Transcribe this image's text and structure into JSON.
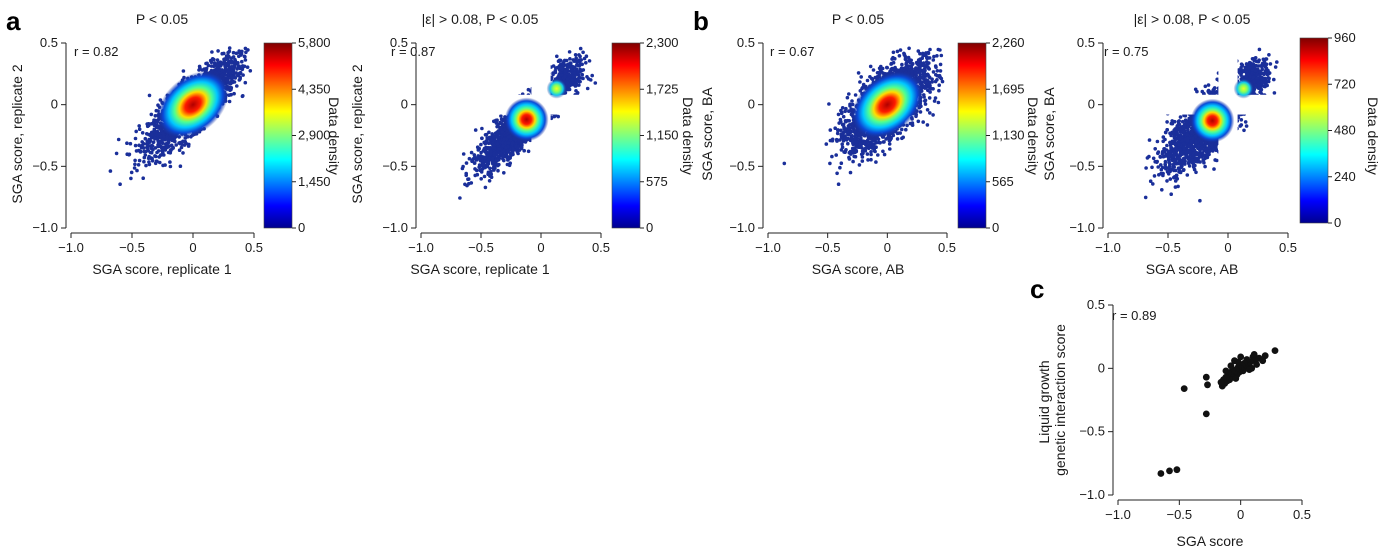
{
  "panel_letters": {
    "a": "a",
    "b": "b",
    "c": "c"
  },
  "chart_data": [
    {
      "id": "a1",
      "type": "scatter",
      "panel": "a",
      "title": "P < 0.05",
      "xlabel": "SGA score, replicate 1",
      "ylabel": "SGA score, replicate 2",
      "xlim": [
        -1.0,
        0.5
      ],
      "ylim": [
        -1.0,
        0.5
      ],
      "xticks": [
        -1.0,
        -0.5,
        0,
        0.5
      ],
      "xtick_labels": [
        "−1.0",
        "−0.5",
        "0",
        "0.5"
      ],
      "yticks": [
        -1.0,
        -0.5,
        0,
        0.5
      ],
      "ytick_labels": [
        "−1.0",
        "−0.5",
        "0",
        "0.5"
      ],
      "annotation": "r = 0.82",
      "r": 0.82,
      "density_center": [
        0.0,
        0.0
      ],
      "colorbar": {
        "label": "Data density",
        "min": 0,
        "max": 5800,
        "ticks": [
          "0",
          "1,450",
          "2,900",
          "4,350",
          "5,800"
        ]
      }
    },
    {
      "id": "a2",
      "type": "scatter",
      "panel": "a",
      "title": "|ε| > 0.08, P < 0.05",
      "xlabel": "SGA score, replicate 1",
      "ylabel": "SGA score, replicate 2",
      "xlim": [
        -1.0,
        0.5
      ],
      "ylim": [
        -1.0,
        0.5
      ],
      "xticks": [
        -1.0,
        -0.5,
        0,
        0.5
      ],
      "xtick_labels": [
        "−1.0",
        "−0.5",
        "0",
        "0.5"
      ],
      "yticks": [
        -1.0,
        -0.5,
        0,
        0.5
      ],
      "ytick_labels": [
        "−1.0",
        "−0.5",
        "0",
        "0.5"
      ],
      "annotation": "r = 0.87",
      "r": 0.87,
      "excluded_band": 0.08,
      "density_center": [
        -0.12,
        -0.12
      ],
      "colorbar": {
        "label": "Data density",
        "min": 0,
        "max": 2300,
        "ticks": [
          "0",
          "575",
          "1,150",
          "1,725",
          "2,300"
        ]
      }
    },
    {
      "id": "b1",
      "type": "scatter",
      "panel": "b",
      "title": "P < 0.05",
      "xlabel": "SGA score, AB",
      "ylabel": "SGA score, BA",
      "xlim": [
        -1.0,
        0.5
      ],
      "ylim": [
        -1.0,
        0.5
      ],
      "xticks": [
        -1.0,
        -0.5,
        0,
        0.5
      ],
      "xtick_labels": [
        "−1.0",
        "−0.5",
        "0",
        "0.5"
      ],
      "yticks": [
        -1.0,
        -0.5,
        0,
        0.5
      ],
      "ytick_labels": [
        "−1.0",
        "−0.5",
        "0",
        "0.5"
      ],
      "annotation": "r = 0.67",
      "r": 0.67,
      "density_center": [
        0.0,
        0.0
      ],
      "colorbar": {
        "label": "Data density",
        "min": 0,
        "max": 2260,
        "ticks": [
          "0",
          "565",
          "1,130",
          "1,695",
          "2,260"
        ]
      }
    },
    {
      "id": "b2",
      "type": "scatter",
      "panel": "b",
      "title": "|ε| > 0.08, P < 0.05",
      "xlabel": "SGA score, AB",
      "ylabel": "SGA score, BA",
      "xlim": [
        -1.0,
        0.5
      ],
      "ylim": [
        -1.0,
        0.5
      ],
      "xticks": [
        -1.0,
        -0.5,
        0,
        0.5
      ],
      "xtick_labels": [
        "−1.0",
        "−0.5",
        "0",
        "0.5"
      ],
      "yticks": [
        -1.0,
        -0.5,
        0,
        0.5
      ],
      "ytick_labels": [
        "−1.0",
        "−0.5",
        "0",
        "0.5"
      ],
      "annotation": "r = 0.75",
      "r": 0.75,
      "excluded_band": 0.08,
      "density_center": [
        -0.13,
        -0.13
      ],
      "colorbar": {
        "label": "Data density",
        "min": 0,
        "max": 960,
        "ticks": [
          "0",
          "240",
          "480",
          "720",
          "960"
        ]
      }
    },
    {
      "id": "c",
      "type": "scatter",
      "panel": "c",
      "title": "",
      "xlabel": "SGA score",
      "ylabel": "Liquid growth\ngenetic interaction score",
      "xlim": [
        -1.0,
        0.5
      ],
      "ylim": [
        -1.0,
        0.5
      ],
      "xticks": [
        -1.0,
        -0.5,
        0,
        0.5
      ],
      "xtick_labels": [
        "−1.0",
        "−0.5",
        "0",
        "0.5"
      ],
      "yticks": [
        -1.0,
        -0.5,
        0,
        0.5
      ],
      "ytick_labels": [
        "−1.0",
        "−0.5",
        "0",
        "0.5"
      ],
      "annotation": "r = 0.89",
      "r": 0.89,
      "points": [
        [
          0.28,
          0.14
        ],
        [
          0.2,
          0.1
        ],
        [
          0.15,
          0.08
        ],
        [
          0.12,
          0.06
        ],
        [
          0.1,
          0.09
        ],
        [
          0.08,
          0.05
        ],
        [
          0.06,
          0.03
        ],
        [
          0.05,
          0.07
        ],
        [
          0.04,
          0.01
        ],
        [
          0.03,
          0.04
        ],
        [
          0.02,
          -0.02
        ],
        [
          0.01,
          0.02
        ],
        [
          0.0,
          0.0
        ],
        [
          -0.01,
          -0.03
        ],
        [
          -0.02,
          0.01
        ],
        [
          -0.03,
          -0.05
        ],
        [
          -0.04,
          -0.01
        ],
        [
          -0.05,
          -0.04
        ],
        [
          -0.06,
          -0.07
        ],
        [
          -0.07,
          -0.02
        ],
        [
          -0.08,
          -0.06
        ],
        [
          -0.09,
          -0.09
        ],
        [
          -0.1,
          -0.04
        ],
        [
          -0.11,
          -0.1
        ],
        [
          -0.12,
          -0.07
        ],
        [
          -0.13,
          -0.12
        ],
        [
          -0.14,
          -0.09
        ],
        [
          -0.15,
          -0.14
        ],
        [
          -0.16,
          -0.11
        ],
        [
          -0.05,
          0.06
        ],
        [
          0.09,
          0.0
        ],
        [
          0.13,
          0.03
        ],
        [
          -0.02,
          0.05
        ],
        [
          0.07,
          -0.01
        ],
        [
          -0.08,
          0.02
        ],
        [
          0.18,
          0.06
        ],
        [
          -0.12,
          -0.02
        ],
        [
          0.0,
          0.09
        ],
        [
          -0.04,
          -0.08
        ],
        [
          0.11,
          0.11
        ],
        [
          -0.28,
          -0.07
        ],
        [
          -0.27,
          -0.13
        ],
        [
          -0.28,
          -0.36
        ],
        [
          -0.46,
          -0.16
        ],
        [
          -0.52,
          -0.8
        ],
        [
          -0.58,
          -0.81
        ],
        [
          -0.65,
          -0.83
        ]
      ]
    }
  ]
}
